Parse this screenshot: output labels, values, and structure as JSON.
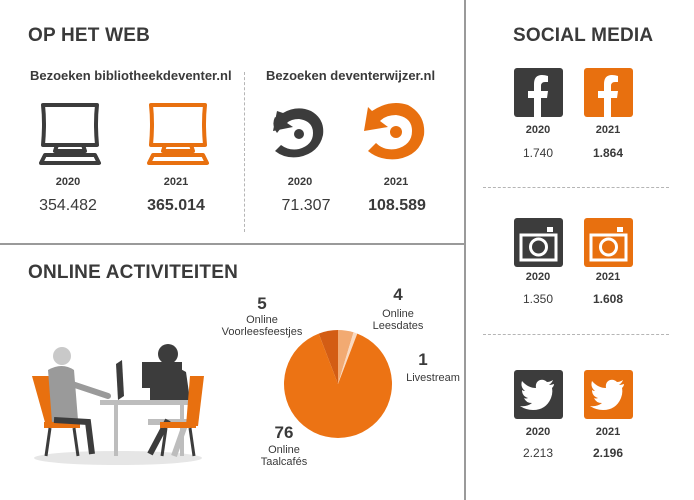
{
  "colors": {
    "orange": "#e8700f",
    "dark": "#3c3c3c",
    "line": "#9a9a9a"
  },
  "web": {
    "title": "OP HET WEB",
    "biblio": {
      "label": "Bezoeken bibliotheekdeventer.nl",
      "year_a": "2020",
      "value_a": "354.482",
      "year_b": "2021",
      "value_b": "365.014",
      "icon": "monitor-icon"
    },
    "wijzer": {
      "label": "Bezoeken deventerwijzer.nl",
      "year_a": "2020",
      "value_a": "71.307",
      "year_b": "2021",
      "value_b": "108.589",
      "icon": "arrow-circle-icon"
    }
  },
  "online": {
    "title": "ONLINE ACTIVITEITEN",
    "slices": [
      {
        "count": "5",
        "label_1": "Online",
        "label_2": "Voorleesfeestjes",
        "value": 5,
        "color": "#d35d14"
      },
      {
        "count": "4",
        "label_1": "Online",
        "label_2": "Leesdates",
        "value": 4,
        "color": "#f2aa72"
      },
      {
        "count": "1",
        "label_1": "Livestream",
        "label_2": "",
        "value": 1,
        "color": "#fad9bf"
      },
      {
        "count": "76",
        "label_1": "Online",
        "label_2": "Taalcafés",
        "value": 76,
        "color": "#ec7314"
      }
    ]
  },
  "social": {
    "title": "SOCIAL MEDIA",
    "facebook": {
      "year_a": "2020",
      "value_a": "1.740",
      "year_b": "2021",
      "value_b": "1.864",
      "icon": "facebook-icon"
    },
    "instagram": {
      "year_a": "2020",
      "value_a": "1.350",
      "year_b": "2021",
      "value_b": "1.608",
      "icon": "instagram-icon"
    },
    "twitter": {
      "year_a": "2020",
      "value_a": "2.213",
      "year_b": "2021",
      "value_b": "2.196",
      "icon": "twitter-icon"
    }
  }
}
